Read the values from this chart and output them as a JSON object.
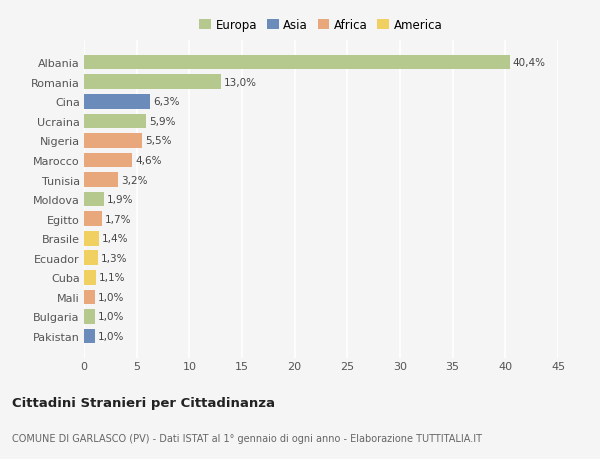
{
  "categories": [
    "Pakistan",
    "Bulgaria",
    "Mali",
    "Cuba",
    "Ecuador",
    "Brasile",
    "Egitto",
    "Moldova",
    "Tunisia",
    "Marocco",
    "Nigeria",
    "Ucraina",
    "Cina",
    "Romania",
    "Albania"
  ],
  "values": [
    1.0,
    1.0,
    1.0,
    1.1,
    1.3,
    1.4,
    1.7,
    1.9,
    3.2,
    4.6,
    5.5,
    5.9,
    6.3,
    13.0,
    40.4
  ],
  "labels": [
    "1,0%",
    "1,0%",
    "1,0%",
    "1,1%",
    "1,3%",
    "1,4%",
    "1,7%",
    "1,9%",
    "3,2%",
    "4,6%",
    "5,5%",
    "5,9%",
    "6,3%",
    "13,0%",
    "40,4%"
  ],
  "colors": [
    "#6b8cba",
    "#b5c98e",
    "#e8a87c",
    "#f0d060",
    "#f0d060",
    "#f0d060",
    "#e8a87c",
    "#b5c98e",
    "#e8a87c",
    "#e8a87c",
    "#e8a87c",
    "#b5c98e",
    "#6b8cba",
    "#b5c98e",
    "#b5c98e"
  ],
  "legend_labels": [
    "Europa",
    "Asia",
    "Africa",
    "America"
  ],
  "legend_colors": [
    "#b5c98e",
    "#6b8cba",
    "#e8a87c",
    "#f0d060"
  ],
  "title": "Cittadini Stranieri per Cittadinanza",
  "subtitle": "COMUNE DI GARLASCO (PV) - Dati ISTAT al 1° gennaio di ogni anno - Elaborazione TUTTITALIA.IT",
  "xlim": [
    0,
    45
  ],
  "xticks": [
    0,
    5,
    10,
    15,
    20,
    25,
    30,
    35,
    40,
    45
  ],
  "background_color": "#f5f5f5",
  "grid_color": "#ffffff",
  "bar_height": 0.75
}
